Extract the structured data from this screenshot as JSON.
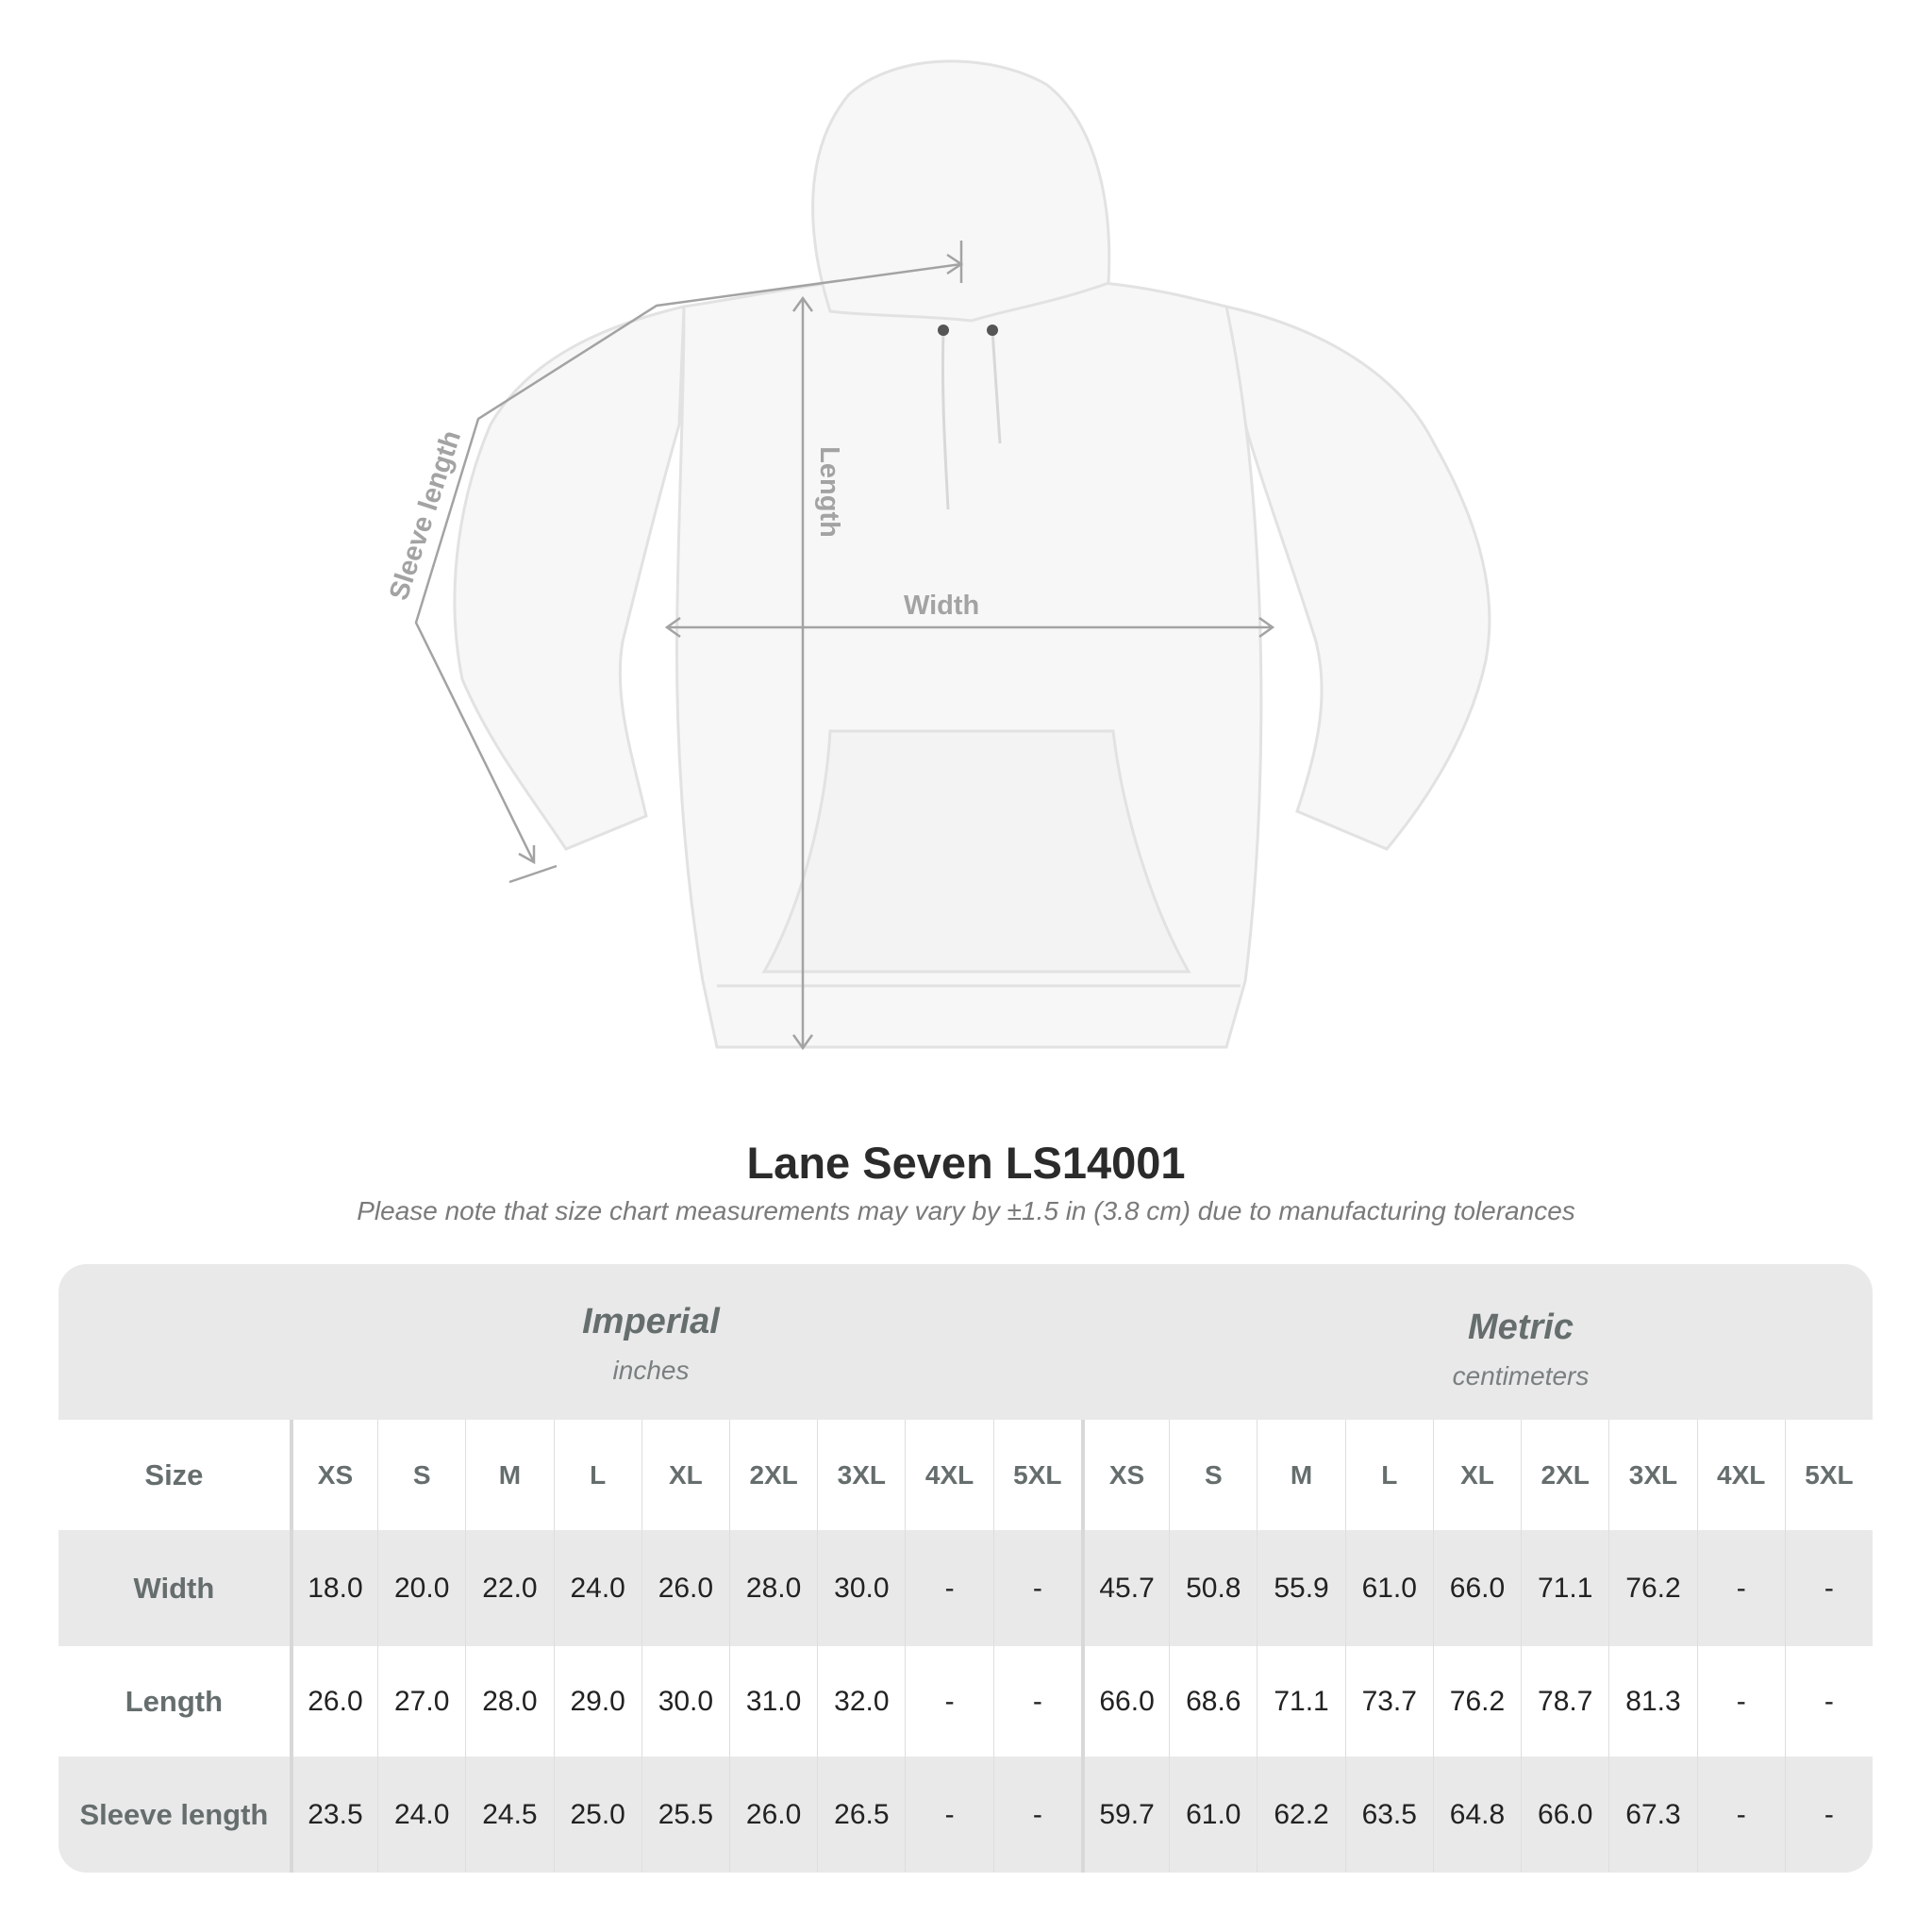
{
  "diagram": {
    "labels": {
      "width": "Width",
      "length": "Length",
      "sleeve": "Sleeve length"
    },
    "line_color": "#a3a3a3"
  },
  "title": "Lane Seven LS14001",
  "note": "Please note that size chart measurements may vary by ±1.5 in (3.8 cm) due to manufacturing tolerances",
  "table": {
    "imperial": {
      "name": "Imperial",
      "unit": "inches"
    },
    "metric": {
      "name": "Metric",
      "unit": "centimeters"
    },
    "size_label": "Size",
    "sizes": [
      "XS",
      "S",
      "M",
      "L",
      "XL",
      "2XL",
      "3XL",
      "4XL",
      "5XL"
    ],
    "rows": [
      {
        "label": "Width",
        "imperial": [
          "18.0",
          "20.0",
          "22.0",
          "24.0",
          "26.0",
          "28.0",
          "30.0",
          "-",
          "-"
        ],
        "metric": [
          "45.7",
          "50.8",
          "55.9",
          "61.0",
          "66.0",
          "71.1",
          "76.2",
          "-",
          "-"
        ]
      },
      {
        "label": "Length",
        "imperial": [
          "26.0",
          "27.0",
          "28.0",
          "29.0",
          "30.0",
          "31.0",
          "32.0",
          "-",
          "-"
        ],
        "metric": [
          "66.0",
          "68.6",
          "71.1",
          "73.7",
          "76.2",
          "78.7",
          "81.3",
          "-",
          "-"
        ]
      },
      {
        "label": "Sleeve length",
        "imperial": [
          "23.5",
          "24.0",
          "24.5",
          "25.0",
          "25.5",
          "26.0",
          "26.5",
          "-",
          "-"
        ],
        "metric": [
          "59.7",
          "61.0",
          "62.2",
          "63.5",
          "64.8",
          "66.0",
          "67.3",
          "-",
          "-"
        ]
      }
    ],
    "band_color": "#e9e9e9"
  }
}
